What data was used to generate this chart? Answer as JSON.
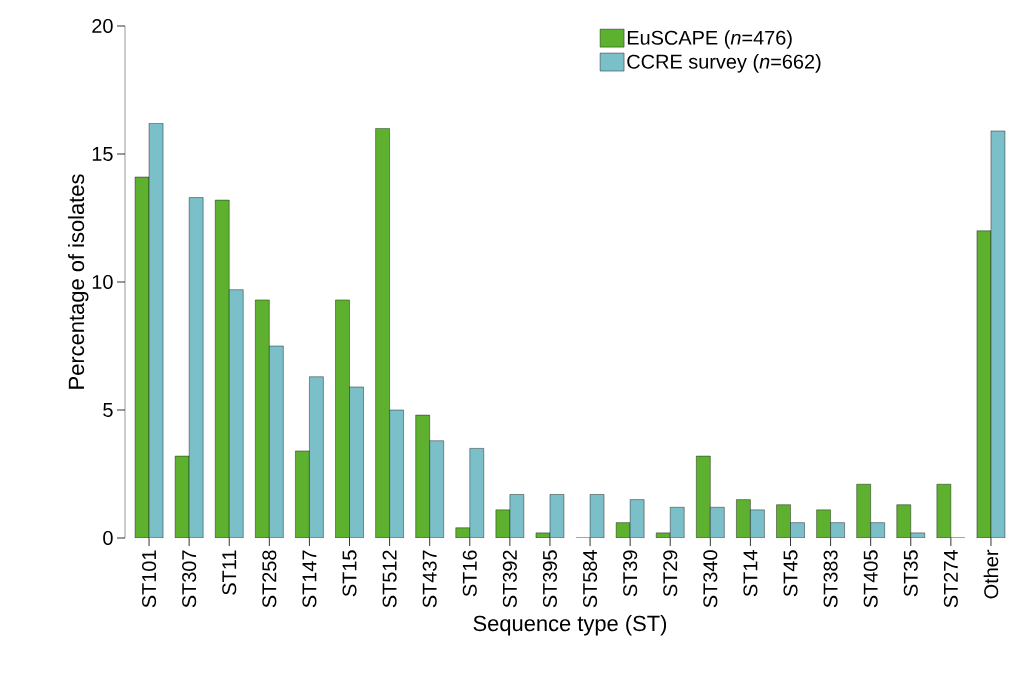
{
  "chart_data": {
    "type": "bar",
    "xlabel": "Sequence type (ST)",
    "ylabel": "Percentage of isolates",
    "categories": [
      "ST101",
      "ST307",
      "ST11",
      "ST258",
      "ST147",
      "ST15",
      "ST512",
      "ST437",
      "ST16",
      "ST392",
      "ST395",
      "ST584",
      "ST39",
      "ST29",
      "ST340",
      "ST14",
      "ST45",
      "ST383",
      "ST405",
      "ST35",
      "ST274",
      "Other"
    ],
    "series": [
      {
        "name": "EuSCAPE (*n*=476)",
        "color": "#5db12f",
        "values": [
          14.1,
          3.2,
          13.2,
          9.3,
          3.4,
          9.3,
          16.0,
          4.8,
          0.4,
          1.1,
          0.2,
          0,
          0.6,
          0.2,
          3.2,
          1.5,
          1.3,
          1.1,
          2.1,
          1.3,
          2.1,
          12.0
        ]
      },
      {
        "name": "CCRE survey (*n*=662)",
        "color": "#7bbfc8",
        "values": [
          16.2,
          13.3,
          9.7,
          7.5,
          6.3,
          5.9,
          5.0,
          3.8,
          3.5,
          1.7,
          1.7,
          1.7,
          1.5,
          1.2,
          1.2,
          1.1,
          0.6,
          0.6,
          0.6,
          0.2,
          0,
          15.9
        ]
      }
    ],
    "ylim": [
      0,
      20
    ],
    "yticks": [
      0,
      5,
      10,
      15,
      20
    ],
    "grid": false,
    "legend": "top right"
  }
}
